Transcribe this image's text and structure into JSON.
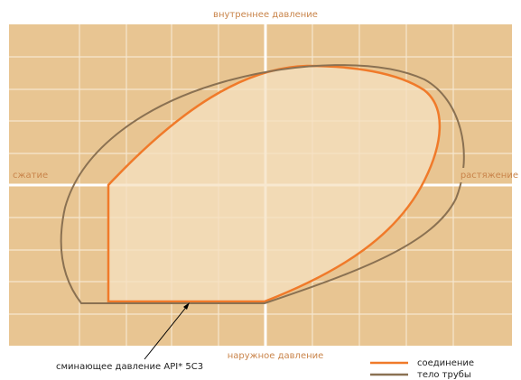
{
  "axes": {
    "top": "внутреннее давление",
    "left": "сжатие",
    "right": "растяжение",
    "bottom": "наружное давление"
  },
  "annotation": "сминающее давление API* 5C3",
  "legend": [
    {
      "label": "соединение",
      "color": "#f07a2a"
    },
    {
      "label": "тело трубы",
      "color": "#8a7152"
    }
  ]
}
